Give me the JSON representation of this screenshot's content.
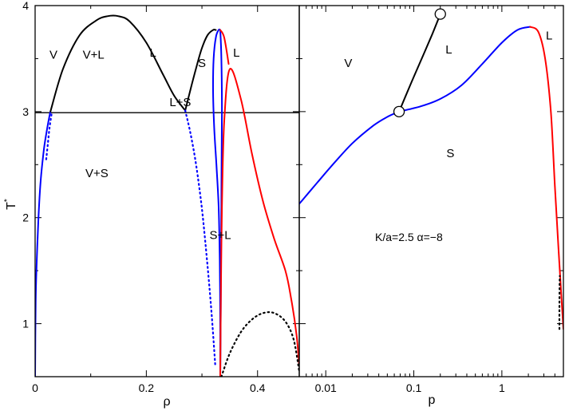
{
  "chart_data": [
    {
      "type": "line",
      "panel": "left",
      "xlabel": "ρ",
      "ylabel": "T",
      "ylabel_superscript": "*",
      "xlim": [
        0,
        0.475
      ],
      "ylim": [
        0.5,
        4
      ],
      "xticks": [
        0,
        0.2,
        0.4
      ],
      "xtick_labels": [
        "0",
        "0.2",
        "0.4"
      ],
      "yticks": [
        1,
        2,
        3,
        4
      ],
      "ytick_labels": [
        "1",
        "2",
        "3",
        "4"
      ],
      "colors": {
        "vl": "#000000",
        "vs": "#0000ff",
        "ls": "#ff0000",
        "hline": "#000000"
      },
      "hline_y": 2.99,
      "series": [
        {
          "key": "vl",
          "color": "#000000",
          "style": "solid",
          "x": [
            0.027,
            0.05,
            0.08,
            0.11,
            0.13,
            0.15,
            0.17,
            0.2,
            0.23,
            0.25,
            0.27
          ],
          "y": [
            2.99,
            3.4,
            3.72,
            3.86,
            3.9,
            3.9,
            3.85,
            3.65,
            3.35,
            3.15,
            3.01
          ]
        },
        {
          "key": "liquidus",
          "color": "#000000",
          "style": "solid",
          "x": [
            0.27,
            0.28,
            0.29,
            0.3,
            0.31,
            0.32,
            0.325
          ],
          "y": [
            3.01,
            3.22,
            3.42,
            3.6,
            3.72,
            3.77,
            3.77
          ]
        },
        {
          "key": "vapor-branch",
          "color": "#0000ff",
          "style": "solid",
          "x": [
            0.0,
            0.001,
            0.003,
            0.006,
            0.01,
            0.016,
            0.022,
            0.027
          ],
          "y": [
            0.5,
            1.2,
            1.6,
            2.0,
            2.35,
            2.65,
            2.85,
            2.99
          ]
        },
        {
          "key": "vapor-metastable",
          "color": "#0000ff",
          "style": "dotted",
          "x": [
            0.02,
            0.023,
            0.026,
            0.03
          ],
          "y": [
            2.55,
            2.7,
            2.85,
            2.99
          ]
        },
        {
          "key": "solid-spinodal",
          "color": "#0000ff",
          "style": "dotted",
          "x": [
            0.27,
            0.28,
            0.29,
            0.3,
            0.31,
            0.318,
            0.324
          ],
          "y": [
            3.01,
            2.78,
            2.48,
            2.08,
            1.55,
            1.05,
            0.6
          ]
        },
        {
          "key": "solid-left",
          "color": "#0000ff",
          "style": "solid",
          "x": [
            0.333,
            0.333,
            0.332,
            0.33,
            0.326,
            0.322,
            0.32,
            0.321,
            0.325,
            0.33,
            0.333
          ],
          "y": [
            0.5,
            1.0,
            1.6,
            2.1,
            2.5,
            2.85,
            3.2,
            3.5,
            3.7,
            3.77,
            3.77
          ]
        },
        {
          "key": "solid-right",
          "color": "#0000ff",
          "style": "solid",
          "x": [
            0.333,
            0.334,
            0.335,
            0.336,
            0.335,
            0.333
          ],
          "y": [
            0.5,
            1.2,
            2.2,
            3.0,
            3.5,
            3.77
          ]
        },
        {
          "key": "liquid-ls",
          "color": "#ff0000",
          "style": "solid",
          "x": [
            0.333,
            0.334,
            0.336,
            0.34,
            0.35,
            0.37,
            0.39,
            0.41,
            0.43,
            0.45,
            0.46,
            0.47,
            0.475
          ],
          "y": [
            0.5,
            1.2,
            2.1,
            2.9,
            3.4,
            3.12,
            2.6,
            2.15,
            1.8,
            1.5,
            1.25,
            0.9,
            0.6
          ]
        },
        {
          "key": "liquid-top",
          "color": "#ff0000",
          "style": "solid",
          "x": [
            0.333,
            0.34,
            0.348
          ],
          "y": [
            3.77,
            3.7,
            3.45
          ]
        },
        {
          "key": "dome",
          "color": "#000000",
          "style": "dotted",
          "x": [
            0.335,
            0.35,
            0.37,
            0.39,
            0.41,
            0.43,
            0.45,
            0.465,
            0.475
          ],
          "y": [
            0.5,
            0.72,
            0.92,
            1.04,
            1.1,
            1.1,
            1.02,
            0.85,
            0.55
          ]
        }
      ],
      "labels": [
        {
          "text": "V",
          "x": 0.033,
          "y": 3.5
        },
        {
          "text": "V+L",
          "x": 0.105,
          "y": 3.5
        },
        {
          "text": "L",
          "x": 0.212,
          "y": 3.52
        },
        {
          "text": "S",
          "x": 0.3,
          "y": 3.42
        },
        {
          "text": "L",
          "x": 0.362,
          "y": 3.52
        },
        {
          "text": "L+S",
          "x": 0.261,
          "y": 3.05
        },
        {
          "text": "V+S",
          "x": 0.111,
          "y": 2.38
        },
        {
          "text": "S+L",
          "x": 0.333,
          "y": 1.8
        }
      ]
    },
    {
      "type": "line",
      "panel": "right",
      "xlabel": "p",
      "xscale": "log",
      "xlim": [
        0.005,
        5
      ],
      "ylim": [
        0.5,
        4
      ],
      "xticks": [
        0.01,
        0.1,
        1
      ],
      "xtick_labels": [
        "0.01",
        "0.1",
        "1"
      ],
      "annotation": "K/a=2.5 α=−8",
      "series": [
        {
          "key": "sublimation",
          "color": "#0000ff",
          "style": "solid",
          "x": [
            0.005,
            0.008,
            0.012,
            0.02,
            0.035,
            0.05,
            0.068
          ],
          "y": [
            2.13,
            2.33,
            2.5,
            2.7,
            2.87,
            2.95,
            3.0
          ]
        },
        {
          "key": "vapor-pressure",
          "color": "#000000",
          "style": "solid",
          "x": [
            0.068,
            0.09,
            0.12,
            0.16,
            0.2
          ],
          "y": [
            3.0,
            3.24,
            3.48,
            3.72,
            3.92
          ]
        },
        {
          "key": "melting",
          "color": "#0000ff",
          "style": "solid",
          "x": [
            0.068,
            0.12,
            0.2,
            0.35,
            0.6,
            1.0,
            1.5,
            2.1
          ],
          "y": [
            3.0,
            3.05,
            3.12,
            3.25,
            3.45,
            3.65,
            3.77,
            3.8
          ]
        },
        {
          "key": "melting-red",
          "color": "#ff0000",
          "style": "solid",
          "x": [
            2.1,
            2.6,
            3.1,
            3.6,
            4.0,
            4.4,
            4.75,
            5.0
          ],
          "y": [
            3.8,
            3.75,
            3.5,
            3.0,
            2.3,
            1.7,
            1.25,
            0.95
          ]
        },
        {
          "key": "metastable",
          "color": "#000000",
          "style": "dotted",
          "x": [
            4.5,
            4.5,
            4.52,
            4.55
          ],
          "y": [
            0.95,
            1.15,
            1.35,
            1.45
          ]
        }
      ],
      "points": [
        {
          "name": "triple-point",
          "x": 0.068,
          "y": 3.0
        },
        {
          "name": "critical-point",
          "x": 0.2,
          "y": 3.92
        }
      ],
      "labels": [
        {
          "text": "V",
          "x": 0.018,
          "y": 3.42
        },
        {
          "text": "L",
          "x": 0.25,
          "y": 3.55
        },
        {
          "text": "L",
          "x": 3.45,
          "y": 3.68
        },
        {
          "text": "S",
          "x": 0.26,
          "y": 2.57
        }
      ]
    }
  ]
}
